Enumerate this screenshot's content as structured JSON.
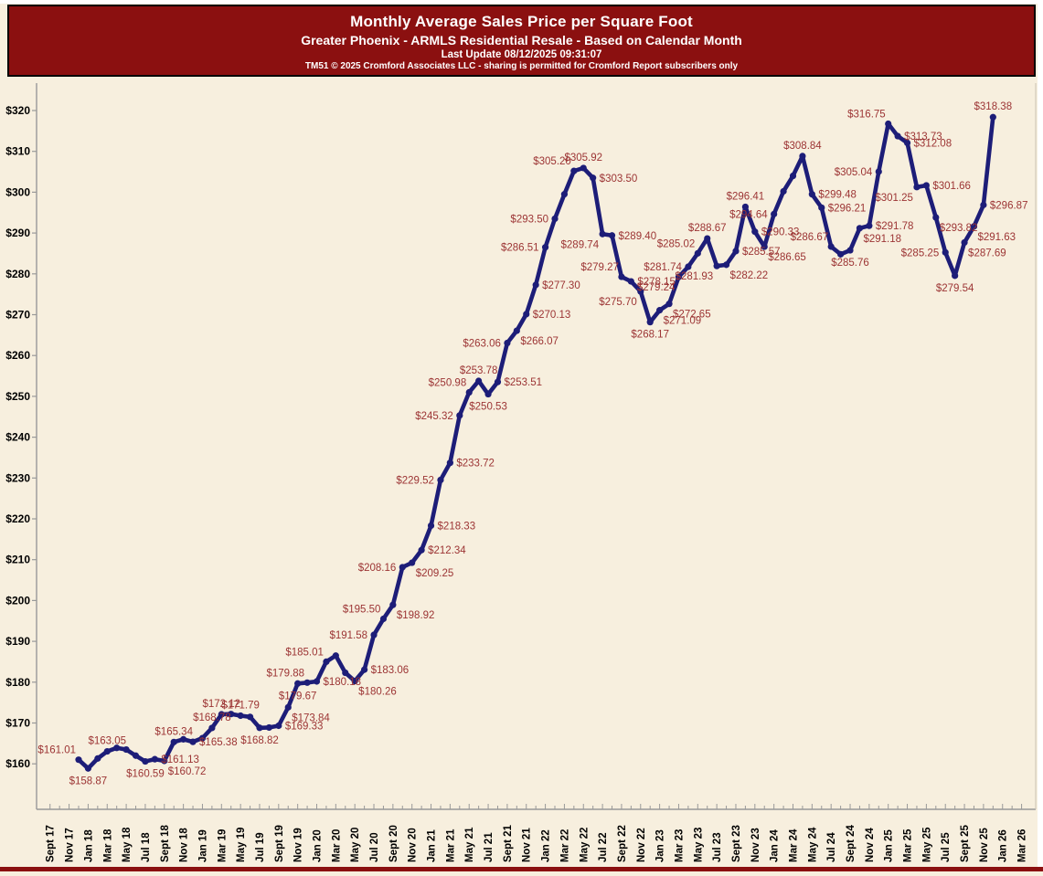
{
  "header": {
    "title": "Monthly Average Sales Price per Square Foot",
    "subtitle": "Greater Phoenix - ARMLS Residential Resale - Based on Calendar Month",
    "last_update": "Last Update 08/12/2025 09:31:07",
    "copyright": "TM51 © 2025 Cromford Associates LLC - sharing is permitted for Cromford Report subscribers only"
  },
  "chart_data": {
    "type": "line",
    "title": "Monthly Average Sales Price per Square Foot",
    "xlabel": "",
    "ylabel": "",
    "y_ticks": [
      160,
      170,
      180,
      190,
      200,
      210,
      220,
      230,
      240,
      250,
      260,
      270,
      280,
      290,
      300,
      310,
      320
    ],
    "y_tick_prefix": "$",
    "ylim": [
      149,
      326.5
    ],
    "x_tick_labels": [
      "Sept 17",
      "Nov 17",
      "Jan 18",
      "Mar 18",
      "May 18",
      "Jul 18",
      "Sept 18",
      "Nov 18",
      "Jan 19",
      "Mar 19",
      "May 19",
      "Jul 19",
      "Sept 19",
      "Nov 19",
      "Jan 20",
      "Mar 20",
      "May 20",
      "Jul 20",
      "Sept 20",
      "Nov 20",
      "Jan 21",
      "Mar 21",
      "May 21",
      "Jul 21",
      "Sept 21",
      "Nov 21",
      "Jan 22",
      "Mar 22",
      "May 22",
      "Jul 22",
      "Sept 22",
      "Nov 22",
      "Jan 23",
      "Mar 23",
      "May 23",
      "Jul 23",
      "Sept 23",
      "Nov 23",
      "Jan 24",
      "Mar 24",
      "May 24",
      "Jul 24",
      "Sept 24",
      "Nov 24",
      "Jan 25",
      "Mar 25",
      "May 25",
      "Jul 25",
      "Sept 25",
      "Nov 25",
      "Jan 26",
      "Mar 26"
    ],
    "grid": false,
    "legend": "none",
    "colors": {
      "line": "#1d1d78",
      "marker": "#1d1d78",
      "data_label": "#9c3434",
      "axis": "#999999",
      "tick_text": "#000000",
      "plot_bg": "#f7efde",
      "header_bg": "#8b1010"
    },
    "series": [
      {
        "name": "Monthly Average Sales Price per Square Foot",
        "points": [
          [
            "Dec-17",
            161.01,
            "$161.01",
            "al"
          ],
          [
            "Jan-18",
            158.87,
            "$158.87",
            "b"
          ],
          [
            "Feb-18",
            161.3,
            null,
            null
          ],
          [
            "Mar-18",
            163.05,
            "$163.05",
            "a"
          ],
          [
            "Apr-18",
            163.9,
            null,
            null
          ],
          [
            "May-18",
            163.5,
            null,
            null
          ],
          [
            "Jun-18",
            162.0,
            null,
            null
          ],
          [
            "Jul-18",
            160.59,
            "$160.59",
            "b"
          ],
          [
            "Aug-18",
            161.13,
            "$161.13",
            "r"
          ],
          [
            "Sep-18",
            160.72,
            "$160.72",
            "br"
          ],
          [
            "Oct-18",
            165.34,
            "$165.34",
            "a"
          ],
          [
            "Nov-18",
            166.0,
            null,
            null
          ],
          [
            "Dec-18",
            165.38,
            "$165.38",
            "r"
          ],
          [
            "Jan-19",
            166.3,
            null,
            null
          ],
          [
            "Feb-19",
            168.78,
            "$168.78",
            "a"
          ],
          [
            "Mar-19",
            172.12,
            "$172.12",
            "a"
          ],
          [
            "Apr-19",
            172.2,
            null,
            null
          ],
          [
            "May-19",
            171.79,
            "$171.79",
            "a"
          ],
          [
            "Jun-19",
            171.5,
            null,
            null
          ],
          [
            "Jul-19",
            168.82,
            "$168.82",
            "b"
          ],
          [
            "Aug-19",
            168.9,
            null,
            null
          ],
          [
            "Sep-19",
            169.33,
            "$169.33",
            "r"
          ],
          [
            "Oct-19",
            173.84,
            "$173.84",
            "br"
          ],
          [
            "Nov-19",
            179.67,
            "$179.67",
            "b"
          ],
          [
            "Dec-19",
            179.88,
            "$179.88",
            "al"
          ],
          [
            "Jan-20",
            180.18,
            "$180.18",
            "r"
          ],
          [
            "Feb-20",
            185.01,
            "$185.01",
            "al"
          ],
          [
            "Mar-20",
            186.5,
            null,
            null
          ],
          [
            "Apr-20",
            182.3,
            null,
            null
          ],
          [
            "May-20",
            180.26,
            "$180.26",
            "br"
          ],
          [
            "Jun-20",
            183.06,
            "$183.06",
            "r"
          ],
          [
            "Jul-20",
            191.58,
            "$191.58",
            "l"
          ],
          [
            "Aug-20",
            195.5,
            "$195.50",
            "al"
          ],
          [
            "Sep-20",
            198.92,
            "$198.92",
            "br"
          ],
          [
            "Oct-20",
            208.16,
            "$208.16",
            "l"
          ],
          [
            "Nov-20",
            209.25,
            "$209.25",
            "br"
          ],
          [
            "Dec-20",
            212.34,
            "$212.34",
            "r"
          ],
          [
            "Jan-21",
            218.33,
            "$218.33",
            "r"
          ],
          [
            "Feb-21",
            229.52,
            "$229.52",
            "l"
          ],
          [
            "Mar-21",
            233.72,
            "$233.72",
            "r"
          ],
          [
            "Apr-21",
            245.32,
            "$245.32",
            "l"
          ],
          [
            "May-21",
            250.98,
            "$250.98",
            "al"
          ],
          [
            "Jun-21",
            253.78,
            "$253.78",
            "a"
          ],
          [
            "Jul-21",
            250.53,
            "$250.53",
            "b"
          ],
          [
            "Aug-21",
            253.51,
            "$253.51",
            "r"
          ],
          [
            "Sep-21",
            263.06,
            "$263.06",
            "l"
          ],
          [
            "Oct-21",
            266.07,
            "$266.07",
            "br"
          ],
          [
            "Nov-21",
            270.13,
            "$270.13",
            "r"
          ],
          [
            "Dec-21",
            277.3,
            "$277.30",
            "r"
          ],
          [
            "Jan-22",
            286.51,
            "$286.51",
            "l"
          ],
          [
            "Feb-22",
            293.5,
            "$293.50",
            "l"
          ],
          [
            "Mar-22",
            299.5,
            null,
            null
          ],
          [
            "Apr-22",
            305.2,
            "$305.20",
            "al"
          ],
          [
            "May-22",
            305.92,
            "$305.92",
            "a"
          ],
          [
            "Jun-22",
            303.5,
            "$303.50",
            "r"
          ],
          [
            "Jul-22",
            289.74,
            "$289.74",
            "bl"
          ],
          [
            "Aug-22",
            289.4,
            "$289.40",
            "r"
          ],
          [
            "Sep-22",
            279.27,
            "$279.27",
            "al"
          ],
          [
            "Oct-22",
            278.15,
            "$278.15",
            "r"
          ],
          [
            "Nov-22",
            275.7,
            "$275.70",
            "bl"
          ],
          [
            "Dec-22",
            268.17,
            "$268.17",
            "b"
          ],
          [
            "Jan-23",
            271.09,
            "$271.09",
            "br"
          ],
          [
            "Feb-23",
            272.65,
            "$272.65",
            "br"
          ],
          [
            "Mar-23",
            279.24,
            "$279.24",
            "bl"
          ],
          [
            "Apr-23",
            281.74,
            "$281.74",
            "l"
          ],
          [
            "May-23",
            285.02,
            "$285.02",
            "al"
          ],
          [
            "Jun-23",
            288.67,
            "$288.67",
            "a"
          ],
          [
            "Jul-23",
            281.93,
            "$281.93",
            "bl"
          ],
          [
            "Aug-23",
            282.22,
            "$282.22",
            "br"
          ],
          [
            "Sep-23",
            285.57,
            "$285.57",
            "r"
          ],
          [
            "Oct-23",
            296.41,
            "$296.41",
            "a"
          ],
          [
            "Nov-23",
            290.33,
            "$290.33",
            "r"
          ],
          [
            "Dec-23",
            286.65,
            "$286.65",
            "br"
          ],
          [
            "Jan-24",
            294.64,
            "$294.64",
            "l"
          ],
          [
            "Feb-24",
            300.2,
            null,
            null
          ],
          [
            "Mar-24",
            304.0,
            null,
            null
          ],
          [
            "Apr-24",
            308.84,
            "$308.84",
            "a"
          ],
          [
            "May-24",
            299.48,
            "$299.48",
            "r"
          ],
          [
            "Jun-24",
            296.21,
            "$296.21",
            "r"
          ],
          [
            "Jul-24",
            286.67,
            "$286.67",
            "al"
          ],
          [
            "Aug-24",
            284.8,
            null,
            null
          ],
          [
            "Sep-24",
            285.76,
            "$285.76",
            "b"
          ],
          [
            "Oct-24",
            291.18,
            "$291.18",
            "br"
          ],
          [
            "Nov-24",
            291.78,
            "$291.78",
            "r"
          ],
          [
            "Dec-24",
            305.04,
            "$305.04",
            "l"
          ],
          [
            "Jan-25",
            316.75,
            "$316.75",
            "al"
          ],
          [
            "Feb-25",
            313.73,
            "$313.73",
            "r"
          ],
          [
            "Mar-25",
            312.08,
            "$312.08",
            "r"
          ],
          [
            "Apr-25",
            301.25,
            "$301.25",
            "bl"
          ],
          [
            "May-25",
            301.66,
            "$301.66",
            "r"
          ],
          [
            "Jun-25",
            293.82,
            "$293.82",
            "br"
          ],
          [
            "Jul-25",
            285.25,
            "$285.25",
            "l"
          ],
          [
            "Aug-25",
            279.54,
            "$279.54",
            "b"
          ],
          [
            "Sep-25",
            287.69,
            "$287.69",
            "br"
          ],
          [
            "Oct-25",
            291.63,
            "$291.63",
            "br"
          ],
          [
            "Nov-25",
            296.87,
            "$296.87",
            "r"
          ],
          [
            "Dec-25",
            318.38,
            "$318.38",
            "a"
          ]
        ]
      }
    ]
  }
}
